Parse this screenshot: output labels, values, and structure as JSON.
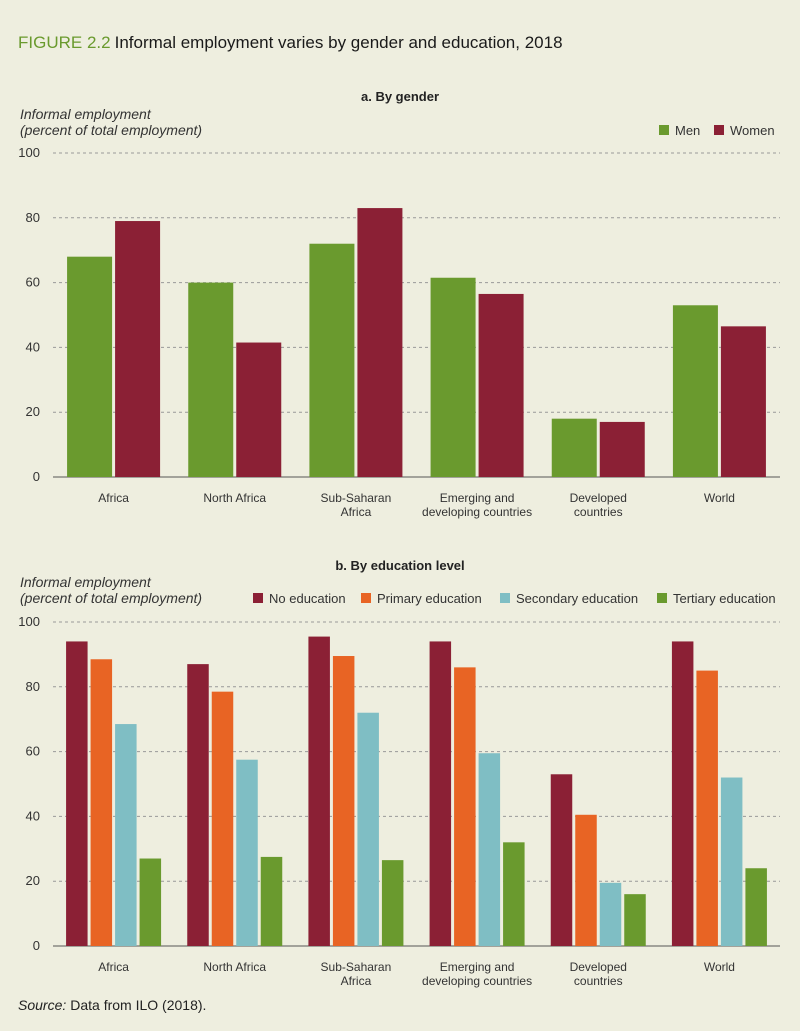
{
  "figure": {
    "number": "FIGURE 2.2",
    "title": "Informal employment varies by gender and education, 2018"
  },
  "colors": {
    "background": "#eeeedf",
    "green": "#6a9a2e",
    "maroon": "#8b2035",
    "orange": "#e86424",
    "teal": "#7fbec4"
  },
  "source": {
    "label": "Source:",
    "text": "Data from ILO (2018)."
  },
  "chart_data": [
    {
      "type": "bar",
      "title": "a. By gender",
      "ylabel_line1": "Informal employment",
      "ylabel_line2": "(percent of total employment)",
      "ylim": [
        0,
        100
      ],
      "yticks": [
        0,
        20,
        40,
        60,
        80,
        100
      ],
      "grid": true,
      "legend_position": "top-right",
      "categories": [
        [
          "Africa"
        ],
        [
          "North Africa"
        ],
        [
          "Sub-Saharan",
          "Africa"
        ],
        [
          "Emerging and",
          "developing countries"
        ],
        [
          "Developed",
          "countries"
        ],
        [
          "World"
        ]
      ],
      "series": [
        {
          "name": "Men",
          "color": "#6a9a2e",
          "values": [
            68,
            60,
            72,
            61.5,
            18,
            53
          ]
        },
        {
          "name": "Women",
          "color": "#8b2035",
          "values": [
            79,
            41.5,
            83,
            56.5,
            17,
            46.5
          ]
        }
      ]
    },
    {
      "type": "bar",
      "title": "b. By education level",
      "ylabel_line1": "Informal employment",
      "ylabel_line2": "(percent of total employment)",
      "ylim": [
        0,
        100
      ],
      "yticks": [
        0,
        20,
        40,
        60,
        80,
        100
      ],
      "grid": true,
      "legend_position": "top-right",
      "categories": [
        [
          "Africa"
        ],
        [
          "North Africa"
        ],
        [
          "Sub-Saharan",
          "Africa"
        ],
        [
          "Emerging and",
          "developing countries"
        ],
        [
          "Developed",
          "countries"
        ],
        [
          "World"
        ]
      ],
      "series": [
        {
          "name": "No education",
          "color": "#8b2035",
          "values": [
            94,
            87,
            95.5,
            94,
            53,
            94
          ]
        },
        {
          "name": "Primary education",
          "color": "#e86424",
          "values": [
            88.5,
            78.5,
            89.5,
            86,
            40.5,
            85
          ]
        },
        {
          "name": "Secondary education",
          "color": "#7fbec4",
          "values": [
            68.5,
            57.5,
            72,
            59.5,
            19.5,
            52
          ]
        },
        {
          "name": "Tertiary education",
          "color": "#6a9a2e",
          "values": [
            27,
            27.5,
            26.5,
            32,
            16,
            24
          ]
        }
      ]
    }
  ]
}
